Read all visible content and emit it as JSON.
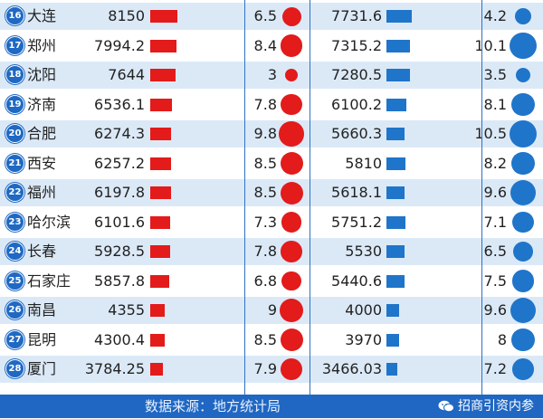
{
  "chart_data": {
    "type": "table",
    "columns": [
      "rank",
      "city",
      "gdp_2020",
      "growth_2020",
      "gdp_2019",
      "growth_2019"
    ],
    "rows": [
      {
        "rank": "16",
        "city": "大连",
        "gdp_2020": "8150",
        "growth_2020": "6.5",
        "gdp_2019": "7731.6",
        "growth_2019": "4.2"
      },
      {
        "rank": "17",
        "city": "郑州",
        "gdp_2020": "7994.2",
        "growth_2020": "8.4",
        "gdp_2019": "7315.2",
        "growth_2019": "10.1"
      },
      {
        "rank": "18",
        "city": "沈阳",
        "gdp_2020": "7644",
        "growth_2020": "3",
        "gdp_2019": "7280.5",
        "growth_2019": "3.5"
      },
      {
        "rank": "19",
        "city": "济南",
        "gdp_2020": "6536.1",
        "growth_2020": "7.8",
        "gdp_2019": "6100.2",
        "growth_2019": "8.1"
      },
      {
        "rank": "20",
        "city": "合肥",
        "gdp_2020": "6274.3",
        "growth_2020": "9.8",
        "gdp_2019": "5660.3",
        "growth_2019": "10.5"
      },
      {
        "rank": "21",
        "city": "西安",
        "gdp_2020": "6257.2",
        "growth_2020": "8.5",
        "gdp_2019": "5810",
        "growth_2019": "8.2"
      },
      {
        "rank": "22",
        "city": "福州",
        "gdp_2020": "6197.8",
        "growth_2020": "8.5",
        "gdp_2019": "5618.1",
        "growth_2019": "9.6"
      },
      {
        "rank": "23",
        "city": "哈尔滨",
        "gdp_2020": "6101.6",
        "growth_2020": "7.3",
        "gdp_2019": "5751.2",
        "growth_2019": "7.1"
      },
      {
        "rank": "24",
        "city": "长春",
        "gdp_2020": "5928.5",
        "growth_2020": "7.8",
        "gdp_2019": "5530",
        "growth_2019": "6.5"
      },
      {
        "rank": "25",
        "city": "石家庄",
        "gdp_2020": "5857.8",
        "growth_2020": "6.8",
        "gdp_2019": "5440.6",
        "growth_2019": "7.5"
      },
      {
        "rank": "26",
        "city": "南昌",
        "gdp_2020": "4355",
        "growth_2020": "9",
        "gdp_2019": "4000",
        "growth_2019": "9.6"
      },
      {
        "rank": "27",
        "city": "昆明",
        "gdp_2020": "4300.4",
        "growth_2020": "8.5",
        "gdp_2019": "3970",
        "growth_2019": "8"
      },
      {
        "rank": "28",
        "city": "厦门",
        "gdp_2020": "3784.25",
        "growth_2020": "7.9",
        "gdp_2019": "3466.03",
        "growth_2019": "7.2"
      }
    ]
  },
  "footer": {
    "source": "数据来源：地方统计局",
    "watermark": "招商引资内参"
  },
  "colors": {
    "accent_red": "#e31b1b",
    "accent_blue": "#1f75c9",
    "row_alt": "#dbe9f7",
    "footer_bg": "#1f67c2"
  },
  "icons": {
    "watermark_icon": "wechat-icon"
  }
}
